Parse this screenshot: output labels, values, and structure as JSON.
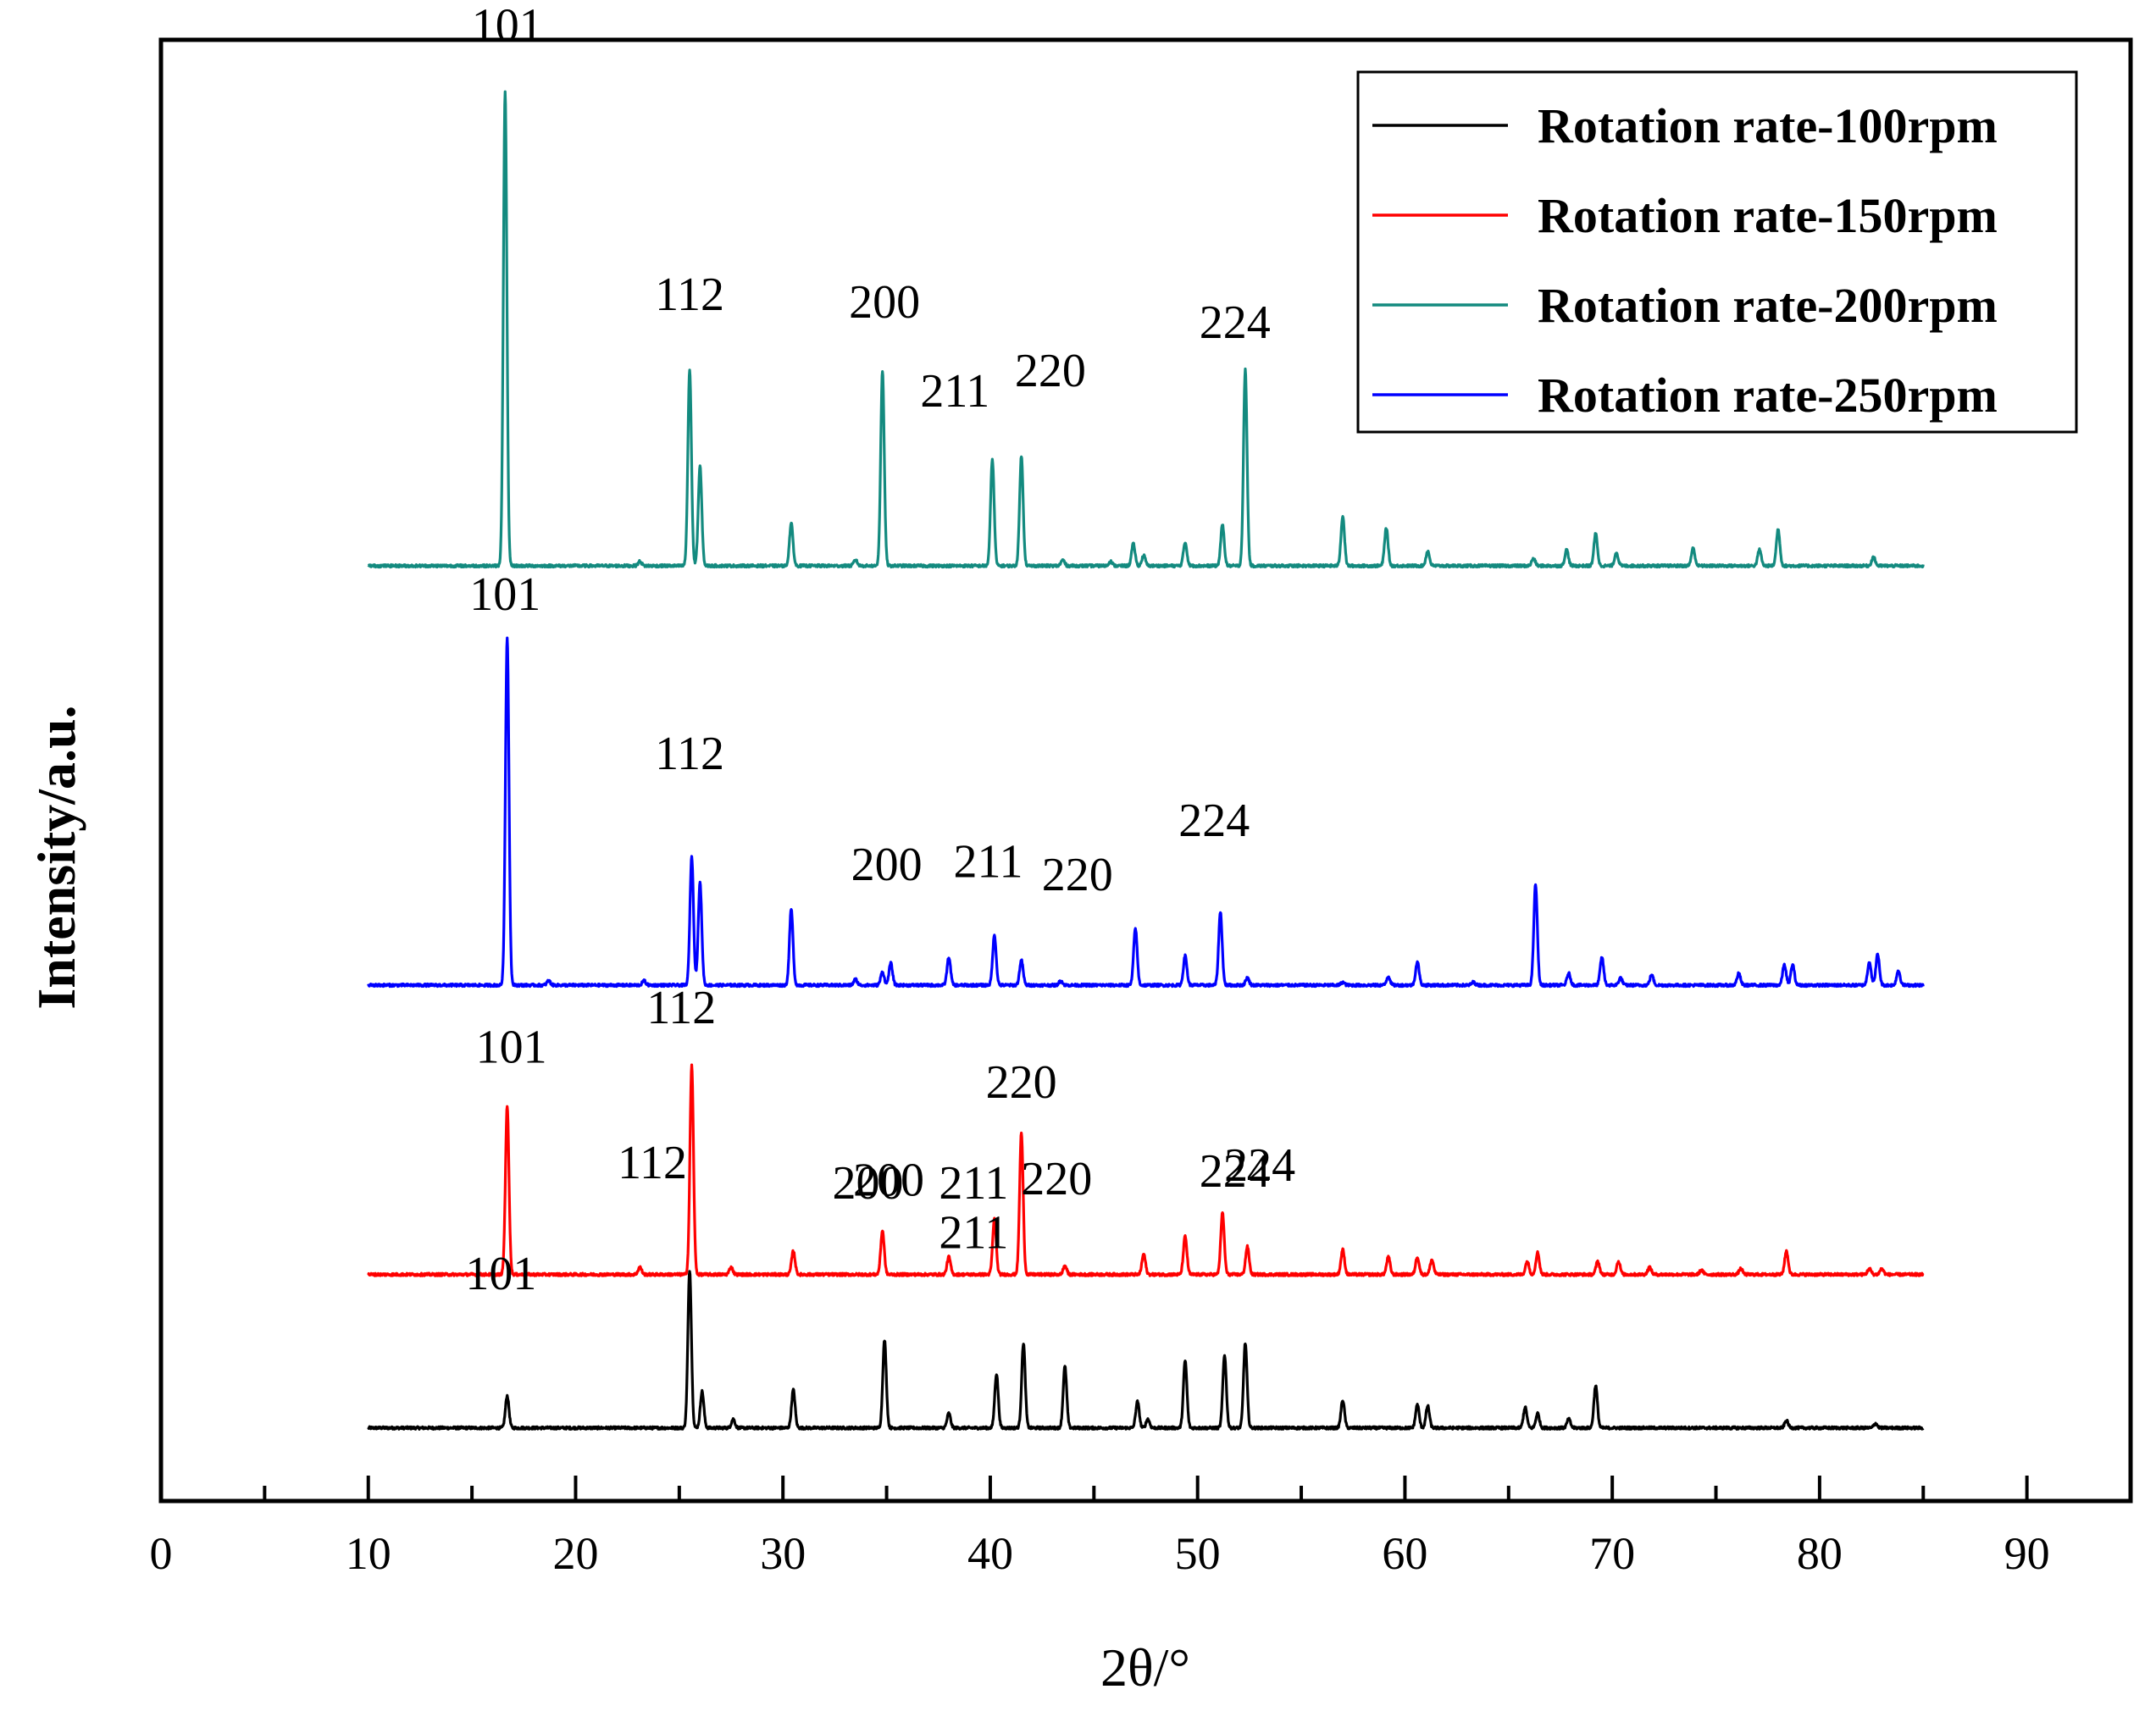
{
  "chart_data": {
    "type": "line",
    "title": "",
    "xlabel": "2θ/°",
    "ylabel": "Intensity/a.u.",
    "xlim": [
      0,
      95
    ],
    "xticks": [
      "0",
      "10",
      "20",
      "30",
      "40",
      "50",
      "60",
      "70",
      "80",
      "90"
    ],
    "ylim": [
      0,
      100
    ],
    "grid": false,
    "legend_position": "top-right",
    "series": [
      {
        "name": "Rotation rate-100rpm",
        "color": "#000000",
        "baseline": 5,
        "peaks": [
          {
            "x": 16.7,
            "h": 2.2
          },
          {
            "x": 25.5,
            "h": 10.8
          },
          {
            "x": 26.1,
            "h": 2.5
          },
          {
            "x": 27.6,
            "h": 0.6
          },
          {
            "x": 30.5,
            "h": 2.6
          },
          {
            "x": 34.9,
            "h": 6.0
          },
          {
            "x": 38.0,
            "h": 1.0
          },
          {
            "x": 40.3,
            "h": 3.7
          },
          {
            "x": 41.6,
            "h": 5.8
          },
          {
            "x": 43.6,
            "h": 4.2
          },
          {
            "x": 47.1,
            "h": 1.8
          },
          {
            "x": 47.6,
            "h": 0.6
          },
          {
            "x": 49.4,
            "h": 4.6
          },
          {
            "x": 51.3,
            "h": 5.0
          },
          {
            "x": 52.3,
            "h": 5.8
          },
          {
            "x": 57.0,
            "h": 1.9
          },
          {
            "x": 60.6,
            "h": 1.6
          },
          {
            "x": 61.1,
            "h": 1.5
          },
          {
            "x": 65.8,
            "h": 1.4
          },
          {
            "x": 66.4,
            "h": 1.0
          },
          {
            "x": 67.9,
            "h": 0.6
          },
          {
            "x": 69.2,
            "h": 2.9
          },
          {
            "x": 78.4,
            "h": 0.5
          },
          {
            "x": 82.7,
            "h": 0.3
          }
        ],
        "labels": [
          {
            "text": "101",
            "x": 16.4,
            "y": 14.5
          },
          {
            "text": "112",
            "x": 23.7,
            "y": 22.1
          },
          {
            "text": "200",
            "x": 35.1,
            "y": 20.9
          },
          {
            "text": "211",
            "x": 39.2,
            "y": 17.3
          },
          {
            "text": "220",
            "x": 43.2,
            "y": 21.0
          },
          {
            "text": "224",
            "x": 51.8,
            "y": 21.5
          }
        ]
      },
      {
        "name": "Rotation rate-150rpm",
        "color": "#ff0000",
        "baseline": 15.5,
        "peaks": [
          {
            "x": 16.7,
            "h": 11.5
          },
          {
            "x": 23.1,
            "h": 0.5
          },
          {
            "x": 25.6,
            "h": 14.3
          },
          {
            "x": 27.5,
            "h": 0.5
          },
          {
            "x": 30.5,
            "h": 1.6
          },
          {
            "x": 34.8,
            "h": 3.0
          },
          {
            "x": 38.0,
            "h": 1.2
          },
          {
            "x": 40.2,
            "h": 3.8
          },
          {
            "x": 41.5,
            "h": 9.7
          },
          {
            "x": 43.6,
            "h": 0.6
          },
          {
            "x": 47.4,
            "h": 1.4
          },
          {
            "x": 49.4,
            "h": 2.6
          },
          {
            "x": 51.2,
            "h": 4.2
          },
          {
            "x": 52.4,
            "h": 1.9
          },
          {
            "x": 57.0,
            "h": 1.7
          },
          {
            "x": 59.2,
            "h": 1.2
          },
          {
            "x": 60.6,
            "h": 1.2
          },
          {
            "x": 61.3,
            "h": 1.0
          },
          {
            "x": 65.9,
            "h": 0.9
          },
          {
            "x": 66.4,
            "h": 1.5
          },
          {
            "x": 69.3,
            "h": 0.9
          },
          {
            "x": 70.3,
            "h": 0.9
          },
          {
            "x": 71.8,
            "h": 0.5
          },
          {
            "x": 74.3,
            "h": 0.3
          },
          {
            "x": 76.2,
            "h": 0.4
          },
          {
            "x": 78.4,
            "h": 1.6
          },
          {
            "x": 82.4,
            "h": 0.4
          },
          {
            "x": 83.0,
            "h": 0.4
          }
        ],
        "labels": [
          {
            "text": "101",
            "x": 16.9,
            "y": 30.0
          },
          {
            "text": "112",
            "x": 25.1,
            "y": 32.7
          },
          {
            "text": "200",
            "x": 34.1,
            "y": 20.7
          },
          {
            "text": "211",
            "x": 39.2,
            "y": 20.7
          },
          {
            "text": "220",
            "x": 41.5,
            "y": 27.6
          },
          {
            "text": "224",
            "x": 53.0,
            "y": 21.9
          }
        ]
      },
      {
        "name": "Rotation rate-250rpm",
        "color": "#0000ff",
        "baseline": 35.3,
        "peaks": [
          {
            "x": 16.7,
            "h": 23.8
          },
          {
            "x": 18.7,
            "h": 0.3
          },
          {
            "x": 23.3,
            "h": 0.3
          },
          {
            "x": 25.6,
            "h": 8.8
          },
          {
            "x": 26.0,
            "h": 7.0
          },
          {
            "x": 30.4,
            "h": 5.2
          },
          {
            "x": 33.5,
            "h": 0.4
          },
          {
            "x": 34.8,
            "h": 0.9
          },
          {
            "x": 35.2,
            "h": 1.5
          },
          {
            "x": 38.0,
            "h": 1.9
          },
          {
            "x": 40.2,
            "h": 3.4
          },
          {
            "x": 41.5,
            "h": 1.7
          },
          {
            "x": 43.4,
            "h": 0.3
          },
          {
            "x": 47.0,
            "h": 3.9
          },
          {
            "x": 49.4,
            "h": 2.0
          },
          {
            "x": 51.1,
            "h": 5.0
          },
          {
            "x": 52.4,
            "h": 0.5
          },
          {
            "x": 57.0,
            "h": 0.2
          },
          {
            "x": 59.2,
            "h": 0.6
          },
          {
            "x": 60.6,
            "h": 1.6
          },
          {
            "x": 63.3,
            "h": 0.2
          },
          {
            "x": 66.3,
            "h": 6.9
          },
          {
            "x": 67.9,
            "h": 0.8
          },
          {
            "x": 69.5,
            "h": 1.9
          },
          {
            "x": 70.4,
            "h": 0.5
          },
          {
            "x": 71.9,
            "h": 0.7
          },
          {
            "x": 76.1,
            "h": 0.8
          },
          {
            "x": 78.3,
            "h": 1.4
          },
          {
            "x": 78.7,
            "h": 1.4
          },
          {
            "x": 82.4,
            "h": 1.6
          },
          {
            "x": 82.8,
            "h": 2.1
          },
          {
            "x": 83.8,
            "h": 1.0
          }
        ],
        "labels": [
          {
            "text": "101",
            "x": 16.6,
            "y": 61.0
          },
          {
            "text": "112",
            "x": 25.5,
            "y": 50.1
          },
          {
            "text": "200",
            "x": 35.0,
            "y": 42.5
          },
          {
            "text": "211",
            "x": 39.9,
            "y": 42.7
          },
          {
            "text": "220",
            "x": 44.2,
            "y": 41.8
          },
          {
            "text": "224",
            "x": 50.8,
            "y": 45.5
          }
        ]
      },
      {
        "name": "Rotation rate-200rpm",
        "color": "#138a7f",
        "baseline": 64.0,
        "peaks": [
          {
            "x": 16.6,
            "h": 32.4
          },
          {
            "x": 23.1,
            "h": 0.3
          },
          {
            "x": 25.5,
            "h": 13.4
          },
          {
            "x": 26.0,
            "h": 6.8
          },
          {
            "x": 30.4,
            "h": 2.9
          },
          {
            "x": 33.5,
            "h": 0.4
          },
          {
            "x": 34.8,
            "h": 13.3
          },
          {
            "x": 40.1,
            "h": 7.3
          },
          {
            "x": 41.5,
            "h": 7.5
          },
          {
            "x": 43.5,
            "h": 0.4
          },
          {
            "x": 45.8,
            "h": 0.3
          },
          {
            "x": 46.9,
            "h": 1.5
          },
          {
            "x": 47.4,
            "h": 0.7
          },
          {
            "x": 49.4,
            "h": 1.6
          },
          {
            "x": 51.2,
            "h": 2.8
          },
          {
            "x": 52.3,
            "h": 13.4
          },
          {
            "x": 57.0,
            "h": 3.4
          },
          {
            "x": 59.1,
            "h": 2.6
          },
          {
            "x": 61.1,
            "h": 1.0
          },
          {
            "x": 66.2,
            "h": 0.5
          },
          {
            "x": 67.8,
            "h": 1.1
          },
          {
            "x": 69.2,
            "h": 2.2
          },
          {
            "x": 70.2,
            "h": 0.9
          },
          {
            "x": 73.9,
            "h": 1.2
          },
          {
            "x": 77.1,
            "h": 1.1
          },
          {
            "x": 78.0,
            "h": 2.5
          },
          {
            "x": 82.6,
            "h": 0.6
          }
        ],
        "labels": [
          {
            "text": "101",
            "x": 16.7,
            "y": 99.9
          },
          {
            "text": "112",
            "x": 25.5,
            "y": 81.5
          },
          {
            "text": "200",
            "x": 34.9,
            "y": 81.0
          },
          {
            "text": "211",
            "x": 38.3,
            "y": 74.9
          },
          {
            "text": "220",
            "x": 42.9,
            "y": 76.3
          },
          {
            "text": "224",
            "x": 51.8,
            "y": 79.6
          }
        ]
      }
    ]
  }
}
